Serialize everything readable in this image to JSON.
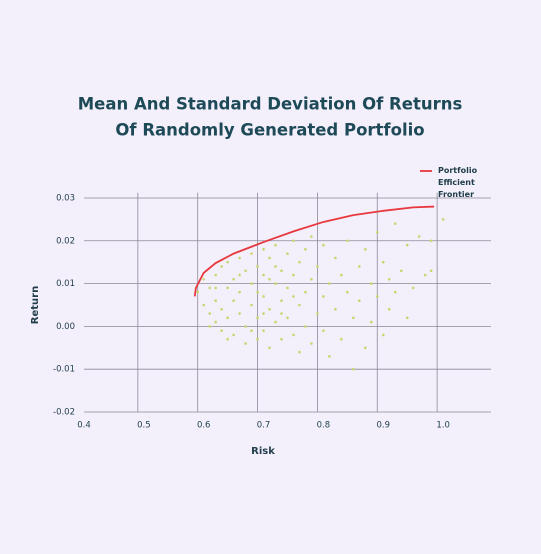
{
  "chart_data": {
    "type": "scatter",
    "title": [
      "Mean And Standard Deviation Of Returns",
      "Of Randomly Generated Portfolio"
    ],
    "x_label": "Risk",
    "y_label": "Return",
    "xlim": [
      0.4,
      1.08
    ],
    "ylim": [
      -0.02,
      0.031
    ],
    "xticks": [
      0.4,
      0.5,
      0.6,
      0.7,
      0.8,
      0.9,
      {
        "value": 1,
        "label": "1.0"
      }
    ],
    "yticks": [
      -0.02,
      -0.01,
      {
        "value": 0,
        "label": "0.00"
      },
      0.01,
      0.02,
      0.03
    ],
    "grid": true,
    "series": [
      {
        "type": "scatter",
        "color": "#c8d66c",
        "x": [
          0.59,
          0.6,
          0.6,
          0.61,
          0.61,
          0.62,
          0.62,
          0.62,
          0.63,
          0.63,
          0.63,
          0.64,
          0.64,
          0.64,
          0.65,
          0.65,
          0.65,
          0.66,
          0.66,
          0.66,
          0.67,
          0.67,
          0.67,
          0.68,
          0.68,
          0.68,
          0.69,
          0.69,
          0.69,
          0.7,
          0.7,
          0.7,
          0.7,
          0.71,
          0.71,
          0.71,
          0.72,
          0.72,
          0.72,
          0.73,
          0.73,
          0.73,
          0.74,
          0.74,
          0.74,
          0.75,
          0.75,
          0.75,
          0.76,
          0.76,
          0.76,
          0.77,
          0.77,
          0.77,
          0.78,
          0.78,
          0.78,
          0.79,
          0.79,
          0.8,
          0.8,
          0.8,
          0.81,
          0.81,
          0.82,
          0.82,
          0.83,
          0.83,
          0.84,
          0.84,
          0.85,
          0.85,
          0.86,
          0.86,
          0.87,
          0.87,
          0.88,
          0.88,
          0.89,
          0.89,
          0.9,
          0.9,
          0.91,
          0.91,
          0.92,
          0.92,
          0.93,
          0.94,
          0.94,
          0.95,
          0.96,
          0.97,
          0.98,
          0.98,
          1.0,
          0.61,
          0.64,
          0.69,
          0.71,
          0.73,
          0.66,
          0.62,
          0.75,
          0.7,
          0.68,
          0.72
        ],
        "values": [
          0.008,
          0.005,
          0.011,
          0.003,
          0.009,
          0.012,
          0.001,
          0.006,
          0.014,
          0.004,
          -0.001,
          0.009,
          0.015,
          0.002,
          0.011,
          0.006,
          -0.002,
          0.016,
          0.003,
          0.008,
          0.013,
          0.0,
          -0.004,
          0.017,
          0.005,
          0.01,
          0.002,
          0.014,
          -0.003,
          0.018,
          0.007,
          0.012,
          -0.001,
          0.004,
          0.016,
          -0.005,
          0.01,
          0.019,
          0.001,
          0.013,
          -0.003,
          0.006,
          0.017,
          0.002,
          0.009,
          0.02,
          -0.002,
          0.012,
          0.005,
          0.015,
          -0.006,
          0.008,
          0.018,
          0.0,
          0.011,
          -0.004,
          0.021,
          0.003,
          0.014,
          0.007,
          -0.001,
          0.019,
          0.01,
          -0.007,
          0.004,
          0.016,
          0.012,
          -0.003,
          0.008,
          0.02,
          -0.01,
          0.002,
          0.014,
          0.006,
          -0.005,
          0.018,
          0.01,
          0.001,
          0.022,
          0.007,
          0.015,
          -0.002,
          0.004,
          0.011,
          0.024,
          0.008,
          0.013,
          0.002,
          0.019,
          0.009,
          0.021,
          0.012,
          0.02,
          0.013,
          0.025,
          0.0,
          -0.003,
          0.008,
          0.011,
          0.003,
          0.012,
          0.009,
          0.007,
          0.003,
          -0.001,
          0.014
        ]
      },
      {
        "type": "line",
        "name": "Portfolio Efficient Frontier",
        "color": "#e8383d",
        "x": [
          0.585,
          0.587,
          0.6,
          0.62,
          0.65,
          0.7,
          0.75,
          0.8,
          0.85,
          0.9,
          0.95,
          0.985
        ],
        "values": [
          0.007,
          0.009,
          0.0125,
          0.0148,
          0.017,
          0.0197,
          0.0222,
          0.0244,
          0.026,
          0.027,
          0.0278,
          0.028
        ]
      }
    ]
  }
}
